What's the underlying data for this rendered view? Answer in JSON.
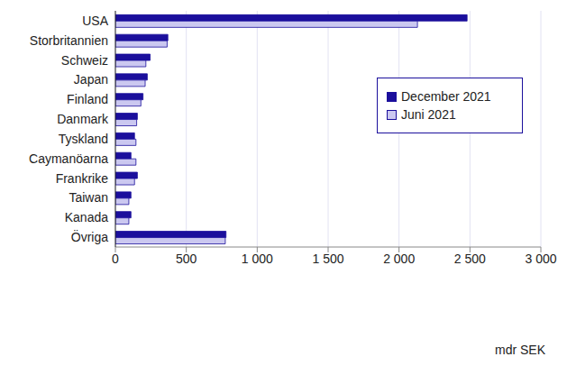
{
  "chart_data": {
    "type": "bar",
    "orientation": "horizontal",
    "categories": [
      "USA",
      "Storbritannien",
      "Schweiz",
      "Japan",
      "Finland",
      "Danmark",
      "Tyskland",
      "Caymanöarna",
      "Frankrike",
      "Taiwan",
      "Kanada",
      "Övriga"
    ],
    "series": [
      {
        "name": "December 2021",
        "color": "#1b0f9c",
        "values": [
          2480,
          370,
          245,
          225,
          195,
          155,
          135,
          110,
          155,
          110,
          110,
          780
        ]
      },
      {
        "name": "Juni 2021",
        "color": "#cbc8f0",
        "values": [
          2130,
          365,
          215,
          210,
          180,
          150,
          145,
          145,
          135,
          95,
          95,
          775
        ]
      }
    ],
    "xlim": [
      0,
      3000
    ],
    "xticks": [
      0,
      500,
      {
        "value": 1000,
        "label": "1 000"
      },
      {
        "value": 1500,
        "label": "1 500"
      },
      {
        "value": 2000,
        "label": "2 000"
      },
      {
        "value": 2500,
        "label": "2 500"
      },
      {
        "value": 3000,
        "label": "3 000"
      }
    ],
    "x_label": "mdr SEK",
    "grid": true,
    "legend": "upper right"
  }
}
